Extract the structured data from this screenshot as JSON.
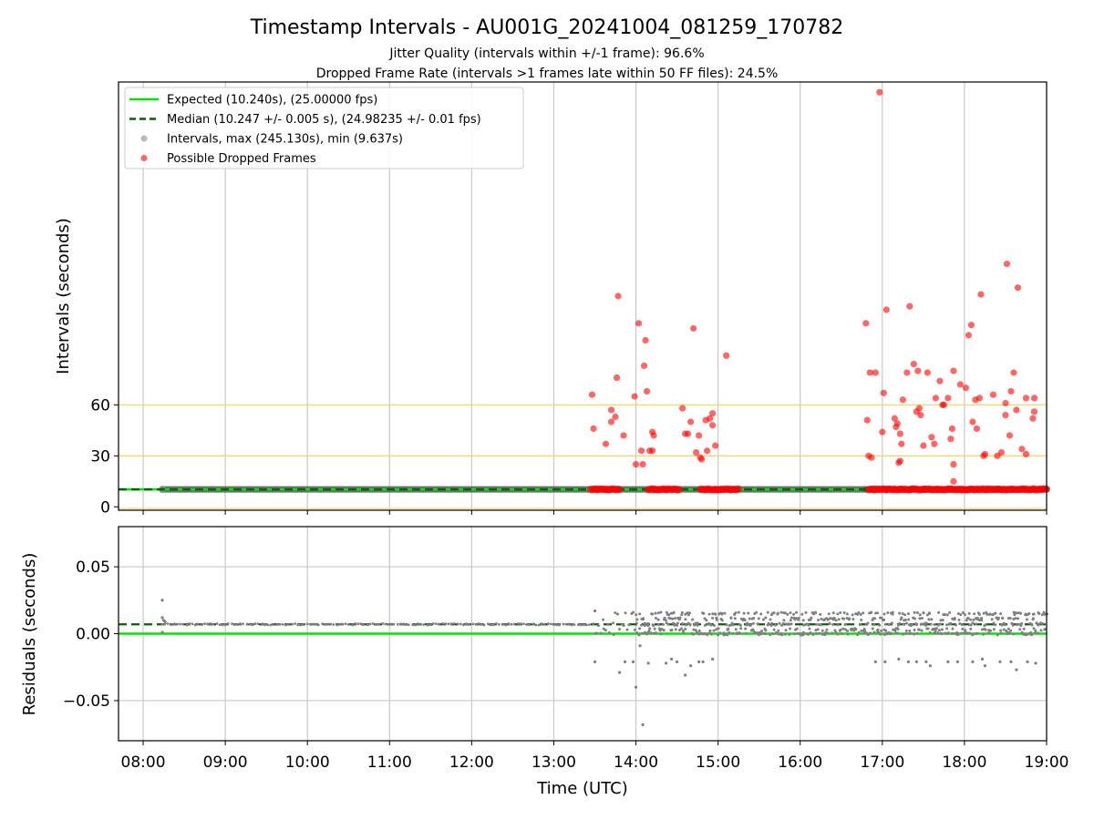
{
  "chart_data": {
    "title": "Timestamp Intervals - AU001G_20241004_081259_170782",
    "subtitle_1": "Jitter Quality (intervals within +/-1 frame): 96.6%",
    "subtitle_2": "Dropped Frame Rate (intervals >1 frames late within 50 FF files): 24.5%",
    "xlabel": "Time (UTC)",
    "x_ticks": [
      "08:00",
      "09:00",
      "10:00",
      "11:00",
      "12:00",
      "13:00",
      "14:00",
      "15:00",
      "16:00",
      "17:00",
      "18:00",
      "19:00"
    ],
    "xlim": [
      "07:42",
      "19:00"
    ],
    "grid": "vertical",
    "legend_position": "upper-left",
    "charts": [
      {
        "type": "scatter",
        "ylabel": "Intervals (seconds)",
        "y_ticks": [
          "0",
          "30",
          "60"
        ],
        "ylim": [
          -2,
          250
        ],
        "reference_lines": [
          -1,
          30,
          60
        ],
        "reference_color": "#ffd36b",
        "series": [
          {
            "name": "Expected (10.240s), (25.00000 fps)",
            "kind": "hline",
            "value": 10.24,
            "color": "#00e600",
            "style": "solid"
          },
          {
            "name": "Median (10.247 +/- 0.005 s), (24.98235 +/- 0.01 fps)",
            "kind": "hline",
            "value": 10.247,
            "color": "#006400",
            "style": "dashed"
          },
          {
            "name": "Intervals, max (245.130s), min (9.637s)",
            "kind": "band",
            "color": "#808080",
            "segments": [
              [
                "08:14",
                "13:30"
              ],
              [
                "13:30",
                "16:48"
              ],
              [
                "16:48",
                "19:00"
              ]
            ],
            "value": 10.24
          },
          {
            "name": "Possible Dropped Frames",
            "kind": "points",
            "color": "#ff0000",
            "baseline_clusters": [
              [
                "13:27",
                "13:48"
              ],
              [
                "14:09",
                "14:32"
              ],
              [
                "14:47",
                "15:15"
              ],
              [
                "16:50",
                "19:00"
              ]
            ],
            "points": [
              [
                "13:28",
                66
              ],
              [
                "13:29",
                46
              ],
              [
                "13:38",
                37
              ],
              [
                "13:42",
                50
              ],
              [
                "13:42",
                57
              ],
              [
                "13:45",
                53
              ],
              [
                "13:47",
                124
              ],
              [
                "13:46",
                76
              ],
              [
                "13:51",
                42
              ],
              [
                "13:59",
                65
              ],
              [
                "14:00",
                25
              ],
              [
                "14:02",
                108
              ],
              [
                "14:04",
                33
              ],
              [
                "14:05",
                25
              ],
              [
                "14:06",
                83
              ],
              [
                "14:07",
                98
              ],
              [
                "14:08",
                68
              ],
              [
                "14:10",
                33
              ],
              [
                "14:12",
                33
              ],
              [
                "14:12",
                44
              ],
              [
                "14:13",
                42
              ],
              [
                "14:34",
                58
              ],
              [
                "14:36",
                43
              ],
              [
                "14:38",
                43
              ],
              [
                "14:40",
                50
              ],
              [
                "14:42",
                105
              ],
              [
                "14:44",
                32
              ],
              [
                "14:46",
                42
              ],
              [
                "14:47",
                29
              ],
              [
                "14:48",
                28
              ],
              [
                "14:51",
                51
              ],
              [
                "14:52",
                33
              ],
              [
                "14:54",
                52
              ],
              [
                "14:56",
                55
              ],
              [
                "14:56",
                48
              ],
              [
                "14:58",
                36
              ],
              [
                "15:06",
                89
              ],
              [
                "16:48",
                108
              ],
              [
                "16:49",
                51
              ],
              [
                "16:50",
                30
              ],
              [
                "16:51",
                79
              ],
              [
                "16:52",
                29
              ],
              [
                "16:55",
                79
              ],
              [
                "16:58",
                244
              ],
              [
                "17:00",
                44
              ],
              [
                "17:01",
                67
              ],
              [
                "17:03",
                116
              ],
              [
                "17:09",
                52
              ],
              [
                "17:10",
                47
              ],
              [
                "17:11",
                49
              ],
              [
                "17:12",
                26
              ],
              [
                "17:13",
                27
              ],
              [
                "17:13",
                43
              ],
              [
                "17:14",
                37
              ],
              [
                "17:15",
                63
              ],
              [
                "17:18",
                79
              ],
              [
                "17:20",
                118
              ],
              [
                "17:23",
                84
              ],
              [
                "17:25",
                56
              ],
              [
                "17:26",
                80
              ],
              [
                "17:27",
                58
              ],
              [
                "17:28",
                54
              ],
              [
                "17:30",
                36
              ],
              [
                "17:33",
                79
              ],
              [
                "17:36",
                41
              ],
              [
                "17:38",
                37
              ],
              [
                "17:39",
                64
              ],
              [
                "17:42",
                74
              ],
              [
                "17:44",
                60
              ],
              [
                "17:45",
                60
              ],
              [
                "17:48",
                64
              ],
              [
                "17:50",
                40
              ],
              [
                "17:51",
                46
              ],
              [
                "17:52",
                15
              ],
              [
                "17:52",
                25
              ],
              [
                "17:52",
                80
              ],
              [
                "17:57",
                72
              ],
              [
                "18:01",
                70
              ],
              [
                "18:03",
                101
              ],
              [
                "18:05",
                107
              ],
              [
                "18:06",
                50
              ],
              [
                "18:08",
                63
              ],
              [
                "18:09",
                46
              ],
              [
                "18:11",
                64
              ],
              [
                "18:12",
                125
              ],
              [
                "18:14",
                30
              ],
              [
                "18:15",
                31
              ],
              [
                "18:21",
                66
              ],
              [
                "18:24",
                30
              ],
              [
                "18:27",
                32
              ],
              [
                "18:30",
                61
              ],
              [
                "18:30",
                54
              ],
              [
                "18:31",
                143
              ],
              [
                "18:33",
                42
              ],
              [
                "18:34",
                68
              ],
              [
                "18:36",
                79
              ],
              [
                "18:38",
                57
              ],
              [
                "18:39",
                129
              ],
              [
                "18:42",
                34
              ],
              [
                "18:45",
                64
              ],
              [
                "18:45",
                31
              ],
              [
                "18:50",
                52
              ],
              [
                "18:51",
                56
              ],
              [
                "18:51",
                64
              ]
            ]
          }
        ]
      },
      {
        "type": "scatter",
        "ylabel": "Residuals (seconds)",
        "y_ticks": [
          "−0.05",
          "0.00",
          "0.05"
        ],
        "ylim": [
          -0.08,
          0.08
        ],
        "grid": "both",
        "series": [
          {
            "kind": "hline",
            "value": 0.0,
            "color": "#00e600",
            "style": "solid"
          },
          {
            "kind": "hline",
            "value": 0.007,
            "color": "#006400",
            "style": "dashed"
          },
          {
            "kind": "points",
            "color": "#808080",
            "baseline": {
              "x_range": [
                "08:14",
                "13:30"
              ],
              "value": 0.007
            },
            "dense_ranges": [
              [
                "13:30",
                "14:00",
                0.0,
                0.016
              ],
              [
                "14:00",
                "16:48",
                0.0,
                0.016
              ],
              [
                "16:48",
                "19:00",
                0.0,
                0.016
              ]
            ],
            "points": [
              [
                "08:14",
                0.025
              ],
              [
                "08:14",
                0.012
              ],
              [
                "08:14",
                0.001
              ],
              [
                "08:15",
                0.01
              ],
              [
                "08:16",
                0.009
              ],
              [
                "13:30",
                0.017
              ],
              [
                "13:30",
                -0.021
              ],
              [
                "13:48",
                -0.029
              ],
              [
                "13:52",
                -0.021
              ],
              [
                "13:58",
                -0.021
              ],
              [
                "14:00",
                -0.04
              ],
              [
                "14:03",
                -0.009
              ],
              [
                "14:05",
                -0.068
              ],
              [
                "14:09",
                -0.022
              ],
              [
                "14:22",
                -0.022
              ],
              [
                "14:26",
                -0.019
              ],
              [
                "14:30",
                -0.021
              ],
              [
                "14:36",
                -0.031
              ],
              [
                "14:40",
                -0.024
              ],
              [
                "14:46",
                -0.021
              ],
              [
                "14:49",
                -0.021
              ],
              [
                "14:56",
                -0.019
              ],
              [
                "15:07",
                0.003
              ],
              [
                "16:55",
                -0.021
              ],
              [
                "17:02",
                -0.021
              ],
              [
                "17:12",
                -0.019
              ],
              [
                "17:19",
                -0.021
              ],
              [
                "17:25",
                -0.021
              ],
              [
                "17:32",
                -0.021
              ],
              [
                "17:35",
                -0.024
              ],
              [
                "17:48",
                -0.021
              ],
              [
                "17:55",
                -0.021
              ],
              [
                "18:06",
                -0.021
              ],
              [
                "18:13",
                -0.019
              ],
              [
                "18:15",
                -0.024
              ],
              [
                "18:26",
                -0.021
              ],
              [
                "18:34",
                -0.021
              ],
              [
                "18:38",
                -0.027
              ],
              [
                "18:46",
                -0.021
              ],
              [
                "18:52",
                -0.022
              ]
            ]
          }
        ]
      }
    ]
  }
}
